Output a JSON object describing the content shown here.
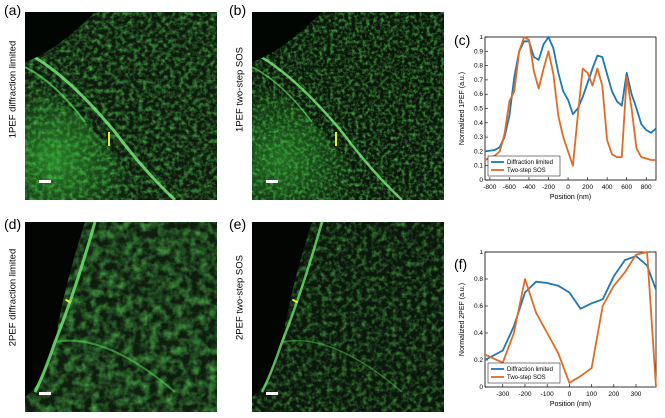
{
  "figure": {
    "panels": [
      {
        "letter": "(a)",
        "side_label": "1PEF diffraction limited"
      },
      {
        "letter": "(b)",
        "side_label": "1PEF two-step SOS"
      },
      {
        "letter": "(c)"
      },
      {
        "letter": "(d)",
        "side_label": "2PEF diffraction limited"
      },
      {
        "letter": "(e)",
        "side_label": "2PEF two-step SOS"
      },
      {
        "letter": "(f)"
      }
    ]
  },
  "colors": {
    "diffraction": "#1f77b4",
    "twostep": "#e06b26",
    "micro_green": "#3fd13f"
  },
  "chart_data": [
    {
      "type": "line",
      "panel": "(c)",
      "title": "",
      "xlabel": "Position (nm)",
      "ylabel": "Normalized 1PEF (a.u.)",
      "xlim": [
        -850,
        900
      ],
      "ylim": [
        0,
        1
      ],
      "xticks": [
        -800,
        -600,
        -400,
        -200,
        0,
        200,
        400,
        600,
        800
      ],
      "yticks": [
        0,
        0.1,
        0.2,
        0.3,
        0.4,
        0.5,
        0.6,
        0.7,
        0.8,
        0.9,
        1
      ],
      "legend": "bottom-left",
      "series": [
        {
          "name": "Diffraction limited",
          "x": [
            -850,
            -750,
            -700,
            -650,
            -600,
            -550,
            -500,
            -450,
            -400,
            -350,
            -300,
            -250,
            -200,
            -150,
            -100,
            -50,
            0,
            50,
            100,
            150,
            200,
            250,
            300,
            350,
            400,
            450,
            500,
            550,
            600,
            650,
            700,
            750,
            800,
            850,
            900
          ],
          "y": [
            0.2,
            0.21,
            0.23,
            0.3,
            0.45,
            0.72,
            0.9,
            0.97,
            0.97,
            0.86,
            0.84,
            0.95,
            1.0,
            0.92,
            0.75,
            0.62,
            0.56,
            0.46,
            0.5,
            0.58,
            0.68,
            0.78,
            0.87,
            0.86,
            0.74,
            0.62,
            0.55,
            0.52,
            0.75,
            0.6,
            0.5,
            0.39,
            0.35,
            0.33,
            0.36
          ]
        },
        {
          "name": "Two-step SOS",
          "x": [
            -850,
            -750,
            -700,
            -650,
            -600,
            -550,
            -500,
            -450,
            -400,
            -350,
            -300,
            -250,
            -200,
            -150,
            -100,
            -50,
            0,
            50,
            100,
            150,
            200,
            250,
            300,
            350,
            400,
            450,
            500,
            550,
            600,
            650,
            700,
            750,
            800,
            850,
            900
          ],
          "y": [
            0.14,
            0.17,
            0.2,
            0.32,
            0.55,
            0.62,
            0.9,
            1.0,
            0.98,
            0.76,
            0.64,
            0.78,
            0.9,
            0.74,
            0.45,
            0.3,
            0.2,
            0.1,
            0.45,
            0.78,
            0.75,
            0.66,
            0.78,
            0.66,
            0.28,
            0.18,
            0.16,
            0.16,
            0.72,
            0.5,
            0.22,
            0.16,
            0.15,
            0.14,
            0.14
          ]
        }
      ]
    },
    {
      "type": "line",
      "panel": "(f)",
      "title": "",
      "xlabel": "Position (nm)",
      "ylabel": "Normalized 2PEF (a.u.)",
      "xlim": [
        -380,
        390
      ],
      "ylim": [
        0,
        1
      ],
      "xticks": [
        -300,
        -200,
        -100,
        0,
        100,
        200,
        300
      ],
      "yticks": [
        0,
        0.2,
        0.4,
        0.6,
        0.8,
        1
      ],
      "legend": "bottom-left",
      "series": [
        {
          "name": "Diffraction limited",
          "x": [
            -380,
            -300,
            -250,
            -200,
            -150,
            -100,
            -50,
            0,
            50,
            100,
            150,
            200,
            250,
            300,
            350,
            390
          ],
          "y": [
            0.2,
            0.27,
            0.45,
            0.7,
            0.78,
            0.77,
            0.75,
            0.7,
            0.58,
            0.62,
            0.65,
            0.82,
            0.94,
            0.97,
            0.9,
            0.72
          ]
        },
        {
          "name": "Two-step SOS",
          "x": [
            -380,
            -300,
            -250,
            -200,
            -150,
            -100,
            -50,
            0,
            50,
            100,
            150,
            200,
            250,
            300,
            350,
            390
          ],
          "y": [
            0.24,
            0.18,
            0.4,
            0.8,
            0.55,
            0.4,
            0.25,
            0.03,
            0.08,
            0.14,
            0.6,
            0.75,
            0.85,
            0.98,
            1.0,
            0.0
          ]
        }
      ]
    }
  ]
}
